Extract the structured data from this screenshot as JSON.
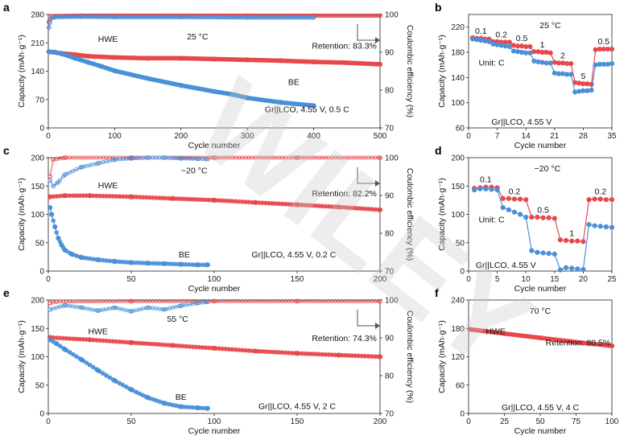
{
  "figure": {
    "watermark": "WILEY",
    "colors": {
      "hwe": "#e8484b",
      "be": "#4a90d9",
      "axis": "#222222",
      "watermark": "#c8c8c8"
    }
  },
  "chart_data": [
    {
      "panel": "a",
      "type": "line",
      "xlabel": "Cycle number",
      "ylabel": "Capacity (mAh·g⁻¹)",
      "y2label": "Coulombic efficiency (%)",
      "xlim": [
        0,
        500
      ],
      "ylim": [
        0,
        280
      ],
      "y2lim": [
        70,
        100
      ],
      "xticks": [
        0,
        100,
        200,
        300,
        400,
        500
      ],
      "yticks": [
        0,
        70,
        140,
        210,
        280
      ],
      "y2ticks": [
        70,
        80,
        90,
        100
      ],
      "annotations": {
        "condition": "25 °C",
        "cell": "Gr||LCO, 4.55 V, 0.5 C",
        "retention": "Retention: 83.3%",
        "hwe_label": "HWE",
        "be_label": "BE"
      },
      "series": [
        {
          "name": "HWE",
          "kind": "capacity",
          "x": [
            1,
            20,
            40,
            60,
            100,
            150,
            200,
            250,
            300,
            350,
            400,
            450,
            500
          ],
          "values": [
            188,
            184,
            181,
            177,
            174,
            172,
            172,
            170,
            168,
            166,
            163,
            161,
            157
          ]
        },
        {
          "name": "BE",
          "kind": "capacity",
          "x": [
            1,
            10,
            20,
            30,
            40,
            60,
            80,
            100,
            150,
            200,
            250,
            280,
            300,
            350,
            400
          ],
          "values": [
            188,
            187,
            183,
            178,
            172,
            162,
            152,
            141,
            122,
            105,
            90,
            82,
            74,
            63,
            55
          ]
        },
        {
          "name": "HWE CE",
          "kind": "efficiency",
          "x": [
            1,
            5,
            10,
            50,
            100,
            200,
            300,
            400,
            500
          ],
          "values": [
            98.0,
            99.5,
            99.6,
            99.7,
            99.7,
            99.7,
            99.7,
            99.7,
            99.7
          ]
        },
        {
          "name": "BE CE",
          "kind": "efficiency",
          "x": [
            1,
            5,
            10,
            50,
            100,
            200,
            300,
            400
          ],
          "values": [
            96.5,
            99.0,
            99.3,
            99.4,
            99.3,
            99.3,
            99.2,
            99.2
          ]
        }
      ]
    },
    {
      "panel": "b",
      "type": "line",
      "xlabel": "Cycle number",
      "ylabel": "Capacity (mAh·g⁻¹)",
      "xlim": [
        0,
        35
      ],
      "ylim": [
        60,
        240
      ],
      "xticks": [
        0,
        7,
        14,
        21,
        28,
        35
      ],
      "yticks": [
        60,
        100,
        140,
        180,
        220
      ],
      "annotations": {
        "condition": "25 °C",
        "cell": "Gr||LCO, 4.55 V",
        "unit": "Unit: C"
      },
      "rate_labels": [
        "0.1",
        "0.2",
        "0.5",
        "1",
        "2",
        "5",
        "0.5"
      ],
      "series": [
        {
          "name": "HWE",
          "kind": "capacity",
          "x": [
            1,
            2,
            3,
            4,
            5,
            6,
            7,
            8,
            9,
            10,
            11,
            12,
            13,
            14,
            15,
            16,
            17,
            18,
            19,
            20,
            21,
            22,
            23,
            24,
            25,
            26,
            27,
            28,
            29,
            30,
            31,
            32,
            33,
            34,
            35
          ],
          "values": [
            203,
            202,
            202,
            201,
            201,
            197,
            197,
            196,
            196,
            196,
            191,
            190,
            190,
            189,
            189,
            181,
            181,
            180,
            180,
            179,
            164,
            163,
            163,
            162,
            162,
            132,
            131,
            130,
            130,
            129,
            184,
            185,
            185,
            185,
            185
          ]
        },
        {
          "name": "BE",
          "kind": "capacity",
          "x": [
            1,
            2,
            3,
            4,
            5,
            6,
            7,
            8,
            9,
            10,
            11,
            12,
            13,
            14,
            15,
            16,
            17,
            18,
            19,
            20,
            21,
            22,
            23,
            24,
            25,
            26,
            27,
            28,
            29,
            30,
            31,
            32,
            33,
            34,
            35
          ],
          "values": [
            201,
            200,
            199,
            198,
            197,
            193,
            192,
            191,
            190,
            189,
            182,
            181,
            180,
            179,
            179,
            166,
            165,
            164,
            163,
            163,
            147,
            146,
            146,
            145,
            145,
            117,
            118,
            119,
            119,
            120,
            160,
            161,
            161,
            161,
            162
          ]
        }
      ]
    },
    {
      "panel": "c",
      "type": "line",
      "xlabel": "Cycle number",
      "ylabel": "Capacity (mAh·g⁻¹)",
      "y2label": "Coulombic efficiency (%)",
      "xlim": [
        0,
        200
      ],
      "ylim": [
        0,
        200
      ],
      "y2lim": [
        70,
        100
      ],
      "xticks": [
        0,
        50,
        100,
        150,
        200
      ],
      "yticks": [
        0,
        50,
        100,
        150,
        200
      ],
      "y2ticks": [
        70,
        80,
        90,
        100
      ],
      "annotations": {
        "condition": "−20 °C",
        "cell": "Gr||LCO, 4.55 V, 0.2 C",
        "retention": "Retention: 82.2%",
        "hwe_label": "HWE",
        "be_label": "BE"
      },
      "series": [
        {
          "name": "HWE",
          "kind": "capacity",
          "x": [
            1,
            10,
            25,
            50,
            75,
            100,
            125,
            150,
            175,
            200
          ],
          "values": [
            131,
            133,
            133,
            131,
            128,
            125,
            121,
            117,
            113,
            108
          ]
        },
        {
          "name": "BE",
          "kind": "capacity",
          "x": [
            1,
            2,
            4,
            6,
            8,
            10,
            14,
            20,
            30,
            40,
            50,
            60,
            70,
            80,
            90,
            96
          ],
          "values": [
            112,
            100,
            78,
            58,
            46,
            37,
            30,
            24,
            20,
            17,
            15,
            14,
            13,
            12,
            11,
            11
          ]
        },
        {
          "name": "HWE CE",
          "kind": "efficiency",
          "x": [
            1,
            3,
            10,
            50,
            100,
            150,
            200
          ],
          "values": [
            95.0,
            99.5,
            100.0,
            100.0,
            100.0,
            100.0,
            100.0
          ]
        },
        {
          "name": "BE CE",
          "kind": "efficiency",
          "x": [
            1,
            3,
            6,
            10,
            20,
            30,
            40,
            50,
            60,
            70,
            80,
            90,
            96
          ],
          "values": [
            94.0,
            92.5,
            93.5,
            95.5,
            97.5,
            98.5,
            99.5,
            99.8,
            100.0,
            100.0,
            99.8,
            99.7,
            99.6
          ]
        }
      ]
    },
    {
      "panel": "d",
      "type": "line",
      "xlabel": "Cycle number",
      "ylabel": "Capacity (mAh·g⁻¹)",
      "xlim": [
        0,
        25
      ],
      "ylim": [
        0,
        200
      ],
      "xticks": [
        0,
        5,
        10,
        15,
        20,
        25
      ],
      "yticks": [
        0,
        50,
        100,
        150,
        200
      ],
      "annotations": {
        "condition": "−20 °C",
        "cell": "Gr||LCO, 4.55 V",
        "unit": "Unit: C"
      },
      "rate_labels": [
        "0.1",
        "0.2",
        "0.5",
        "1",
        "0.2"
      ],
      "series": [
        {
          "name": "HWE",
          "kind": "capacity",
          "x": [
            1,
            2,
            3,
            4,
            5,
            6,
            7,
            8,
            9,
            10,
            11,
            12,
            13,
            14,
            15,
            16,
            17,
            18,
            19,
            20,
            21,
            22,
            23,
            24,
            25
          ],
          "values": [
            146,
            147,
            148,
            148,
            147,
            128,
            128,
            127,
            127,
            126,
            95,
            95,
            94,
            94,
            93,
            55,
            54,
            53,
            53,
            52,
            126,
            127,
            127,
            126,
            126
          ]
        },
        {
          "name": "BE",
          "kind": "capacity",
          "x": [
            1,
            2,
            3,
            4,
            5,
            6,
            7,
            8,
            9,
            10,
            11,
            12,
            13,
            14,
            15,
            16,
            17,
            18,
            19,
            20,
            21,
            22,
            23,
            24,
            25
          ],
          "values": [
            143,
            145,
            145,
            144,
            143,
            112,
            108,
            104,
            100,
            95,
            36,
            33,
            32,
            31,
            30,
            2,
            6,
            5,
            4,
            3,
            82,
            80,
            79,
            78,
            77
          ]
        }
      ]
    },
    {
      "panel": "e",
      "type": "line",
      "xlabel": "Cycle number",
      "ylabel": "Capacity (mAh·g⁻¹)",
      "y2label": "Coulombic efficiency (%)",
      "xlim": [
        0,
        200
      ],
      "ylim": [
        0,
        200
      ],
      "y2lim": [
        70,
        100
      ],
      "xticks": [
        0,
        50,
        100,
        150,
        200
      ],
      "yticks": [
        0,
        50,
        100,
        150,
        200
      ],
      "y2ticks": [
        70,
        80,
        90,
        100
      ],
      "annotations": {
        "condition": "55 °C",
        "cell": "Gr||LCO, 4.55 V, 2 C",
        "retention": "Retention: 74.3%",
        "hwe_label": "HWE",
        "be_label": "BE"
      },
      "series": [
        {
          "name": "HWE",
          "kind": "capacity",
          "x": [
            1,
            25,
            50,
            75,
            100,
            125,
            150,
            175,
            200
          ],
          "values": [
            134,
            130,
            125,
            120,
            115,
            110,
            106,
            103,
            100
          ]
        },
        {
          "name": "BE",
          "kind": "capacity",
          "x": [
            1,
            5,
            10,
            20,
            30,
            40,
            50,
            60,
            70,
            80,
            90,
            96
          ],
          "values": [
            130,
            123,
            113,
            95,
            76,
            58,
            42,
            28,
            18,
            12,
            10,
            9
          ]
        },
        {
          "name": "HWE CE",
          "kind": "efficiency",
          "x": [
            1,
            5,
            50,
            100,
            150,
            200
          ],
          "values": [
            99.2,
            99.6,
            99.7,
            99.7,
            99.7,
            99.7
          ]
        },
        {
          "name": "BE CE",
          "kind": "efficiency",
          "x": [
            1,
            10,
            20,
            30,
            40,
            50,
            60,
            70,
            80,
            90,
            96
          ],
          "values": [
            97.5,
            98.6,
            98.0,
            97.2,
            98.0,
            97.0,
            98.0,
            97.5,
            98.5,
            99.2,
            99.5
          ]
        }
      ]
    },
    {
      "panel": "f",
      "type": "line",
      "xlabel": "Cycle number",
      "ylabel": "Capacity (mAh·g⁻¹)",
      "xlim": [
        0,
        100
      ],
      "ylim": [
        0,
        240
      ],
      "xticks": [
        0,
        25,
        50,
        75,
        100
      ],
      "yticks": [
        0,
        60,
        120,
        180,
        240
      ],
      "annotations": {
        "condition": "70 °C",
        "cell": "Gr||LCO, 4.55 V, 4 C",
        "retention": "Retention: 80.5%",
        "hwe_label": "HWE"
      },
      "series": [
        {
          "name": "HWE",
          "kind": "capacity",
          "x": [
            1,
            25,
            50,
            75,
            100
          ],
          "values": [
            178,
            169,
            160,
            151,
            143
          ]
        }
      ]
    }
  ]
}
